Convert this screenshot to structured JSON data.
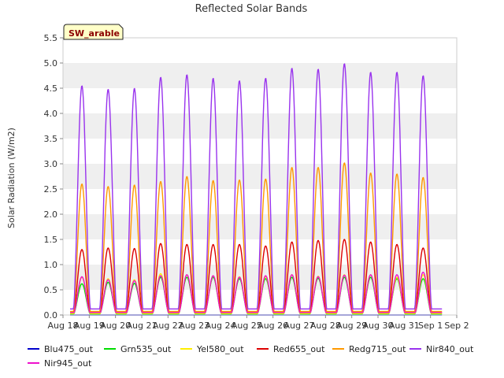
{
  "chart_data": {
    "type": "line",
    "title": "Reflected Solar Bands",
    "ylabel": "Solar Radiation (W/m2)",
    "xlabel": "",
    "badge": "SW_arable",
    "ylim": [
      0,
      5.5
    ],
    "yticks": [
      "0.0",
      "0.5",
      "1.0",
      "1.5",
      "2.0",
      "2.5",
      "3.0",
      "3.5",
      "4.0",
      "4.5",
      "5.0",
      "5.5"
    ],
    "xlim_days": [
      "Aug 18",
      "Sep 2"
    ],
    "xticks": [
      "Aug 18",
      "Aug 19",
      "Aug 20",
      "Aug 21",
      "Aug 22",
      "Aug 23",
      "Aug 24",
      "Aug 25",
      "Aug 26",
      "Aug 27",
      "Aug 28",
      "Aug 29",
      "Aug 30",
      "Aug 31",
      "Sep 1",
      "Sep 2"
    ],
    "band_shading": true,
    "grid": false,
    "legend_position": "bottom",
    "day_starts": [
      "Aug 18",
      "Aug 19",
      "Aug 20",
      "Aug 21",
      "Aug 22",
      "Aug 23",
      "Aug 24",
      "Aug 25",
      "Aug 26",
      "Aug 27",
      "Aug 28",
      "Aug 29",
      "Aug 30",
      "Aug 31",
      "Sep 1"
    ],
    "daily_peak_days": [
      "Aug 19",
      "Aug 20",
      "Aug 21",
      "Aug 22",
      "Aug 23",
      "Aug 24",
      "Aug 25",
      "Aug 26",
      "Aug 27",
      "Aug 28",
      "Aug 29",
      "Aug 30",
      "Aug 31",
      "Sep 1"
    ],
    "series": [
      {
        "name": "Blu475_out",
        "color": "#0000cc",
        "night": 0.0,
        "peaks": [
          0.0,
          0.0,
          0.0,
          0.0,
          0.0,
          0.0,
          0.0,
          0.0,
          0.0,
          0.0,
          0.0,
          0.0,
          0.0,
          0.0
        ]
      },
      {
        "name": "Grn535_out",
        "color": "#00dd00",
        "night": 0.02,
        "peaks": [
          0.62,
          0.65,
          0.63,
          0.75,
          0.75,
          0.75,
          0.72,
          0.72,
          0.75,
          0.73,
          0.75,
          0.75,
          0.72,
          0.72
        ]
      },
      {
        "name": "Yel580_out",
        "color": "#ffee00",
        "night": 0.03,
        "peaks": [
          0.75,
          0.72,
          0.7,
          0.82,
          0.8,
          0.78,
          0.76,
          0.76,
          0.8,
          0.77,
          0.8,
          0.8,
          0.75,
          0.8
        ]
      },
      {
        "name": "Red655_out",
        "color": "#dd0000",
        "night": 0.05,
        "peaks": [
          1.3,
          1.33,
          1.32,
          1.42,
          1.4,
          1.4,
          1.4,
          1.37,
          1.45,
          1.48,
          1.5,
          1.45,
          1.4,
          1.33
        ]
      },
      {
        "name": "Redg715_out",
        "color": "#ff9900",
        "night": 0.07,
        "peaks": [
          2.6,
          2.55,
          2.58,
          2.65,
          2.75,
          2.67,
          2.68,
          2.7,
          2.93,
          2.93,
          3.02,
          2.82,
          2.8,
          2.73
        ]
      },
      {
        "name": "Nir840_out",
        "color": "#9933ee",
        "night": 0.12,
        "peaks": [
          4.55,
          4.48,
          4.5,
          4.72,
          4.77,
          4.7,
          4.65,
          4.7,
          4.9,
          4.88,
          4.99,
          4.82,
          4.82,
          4.75
        ]
      },
      {
        "name": "Nir945_out",
        "color": "#ee11cc",
        "night": 0.05,
        "peaks": [
          0.76,
          0.7,
          0.68,
          0.78,
          0.8,
          0.78,
          0.75,
          0.78,
          0.8,
          0.76,
          0.79,
          0.8,
          0.8,
          0.85
        ]
      }
    ]
  }
}
